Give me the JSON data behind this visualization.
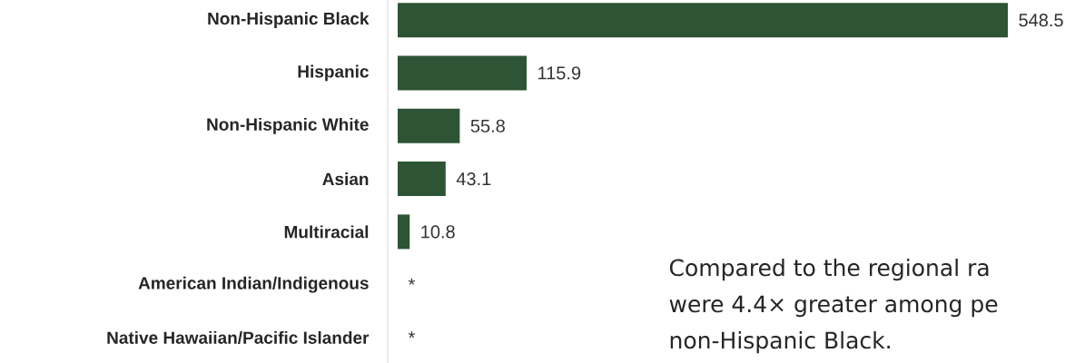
{
  "chart_data": {
    "type": "bar",
    "orientation": "horizontal",
    "categories": [
      "Non-Hispanic Black",
      "Hispanic",
      "Non-Hispanic White",
      "Asian",
      "Multiracial",
      "American Indian/Indigenous",
      "Native Hawaiian/Pacific Islander"
    ],
    "values": [
      548.5,
      115.9,
      55.8,
      43.1,
      10.8,
      null,
      null
    ],
    "value_labels": [
      "548.5",
      "115.9",
      "55.8",
      "43.1",
      "10.8",
      "*",
      "*"
    ],
    "color": "#2d5434",
    "annotations": [
      "Compared to the regional ra",
      "were 4.4× greater among pe",
      "non-Hispanic Black."
    ]
  }
}
